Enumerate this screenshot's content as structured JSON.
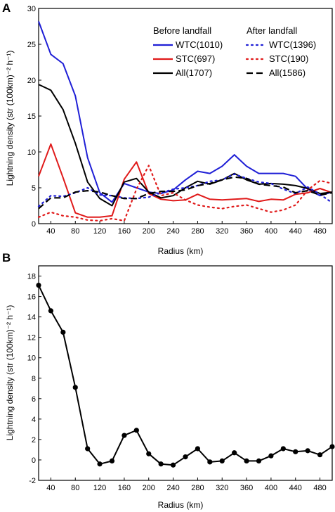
{
  "chart_data": [
    {
      "type": "line",
      "panel_label": "A",
      "xlabel": "Radius (km)",
      "ylabel": "Lightning density (str (100km)⁻² h⁻¹)",
      "xlim": [
        20,
        500
      ],
      "ylim": [
        0,
        30
      ],
      "xticks": [
        40,
        80,
        120,
        160,
        200,
        240,
        280,
        320,
        360,
        400,
        440,
        480
      ],
      "yticks": [
        0,
        5,
        10,
        15,
        20,
        25,
        30
      ],
      "legend": {
        "position": "top-right",
        "group_titles": [
          "Before landfall",
          "After landfall"
        ]
      },
      "x": [
        20,
        40,
        60,
        80,
        100,
        120,
        140,
        160,
        180,
        200,
        220,
        240,
        260,
        280,
        300,
        320,
        340,
        360,
        380,
        400,
        420,
        440,
        460,
        480,
        500
      ],
      "series": [
        {
          "name": "WTC(1010)",
          "group": "before",
          "color": "#1f1fd6",
          "dash": "solid",
          "values": [
            28.2,
            23.6,
            22.3,
            17.8,
            9.2,
            4.3,
            3.0,
            5.6,
            5.0,
            4.4,
            4.2,
            4.7,
            6.1,
            7.3,
            7.0,
            8.0,
            9.6,
            8.0,
            7.0,
            7.0,
            7.0,
            6.6,
            4.8,
            3.9,
            4.4
          ]
        },
        {
          "name": "STC(697)",
          "group": "before",
          "color": "#e01a1a",
          "dash": "solid",
          "values": [
            6.6,
            11.1,
            6.4,
            1.5,
            0.9,
            0.9,
            1.1,
            6.2,
            8.6,
            4.2,
            3.4,
            3.2,
            3.3,
            4.1,
            3.4,
            3.3,
            3.4,
            3.5,
            3.1,
            3.4,
            3.3,
            4.1,
            4.3,
            4.9,
            4.3
          ]
        },
        {
          "name": "All(1707)",
          "group": "before",
          "color": "#000000",
          "dash": "solid",
          "values": [
            19.4,
            18.6,
            15.9,
            11.2,
            5.8,
            3.5,
            2.5,
            5.8,
            6.3,
            4.4,
            3.6,
            3.9,
            5.0,
            5.9,
            5.5,
            6.1,
            7.0,
            6.1,
            5.5,
            5.6,
            5.5,
            5.3,
            4.9,
            4.2,
            4.4
          ]
        },
        {
          "name": "WTC(1396)",
          "group": "after",
          "color": "#1f1fd6",
          "dash": "dot",
          "values": [
            2.4,
            3.9,
            3.8,
            4.3,
            5.0,
            4.0,
            3.9,
            3.6,
            3.5,
            3.7,
            4.3,
            4.8,
            5.0,
            5.3,
            5.9,
            6.1,
            6.9,
            6.3,
            5.8,
            5.6,
            4.8,
            4.2,
            5.1,
            4.1,
            2.9
          ]
        },
        {
          "name": "STC(190)",
          "group": "after",
          "color": "#e01a1a",
          "dash": "dot",
          "values": [
            0.9,
            1.6,
            1.1,
            0.9,
            0.5,
            0.4,
            0.7,
            0.4,
            4.8,
            8.1,
            3.9,
            4.3,
            3.3,
            2.6,
            2.3,
            2.1,
            2.4,
            2.6,
            2.1,
            1.6,
            1.9,
            2.6,
            4.7,
            6.0,
            5.6
          ]
        },
        {
          "name": "All(1586)",
          "group": "after",
          "color": "#000000",
          "dash": "dash",
          "values": [
            2.1,
            3.6,
            3.6,
            4.4,
            4.6,
            4.4,
            3.9,
            3.5,
            3.5,
            4.2,
            4.5,
            4.5,
            4.7,
            5.3,
            5.6,
            6.1,
            6.5,
            6.3,
            5.5,
            5.3,
            5.1,
            4.3,
            4.6,
            4.0,
            4.3
          ]
        }
      ]
    },
    {
      "type": "line",
      "panel_label": "B",
      "xlabel": "Radius (km)",
      "ylabel": "Lightning density (str (100km)⁻² h⁻¹)",
      "xlim": [
        20,
        500
      ],
      "ylim": [
        -2,
        19
      ],
      "xticks": [
        40,
        80,
        120,
        160,
        200,
        240,
        280,
        320,
        360,
        400,
        440,
        480
      ],
      "yticks": [
        -2,
        0,
        2,
        4,
        6,
        8,
        10,
        12,
        14,
        16,
        18
      ],
      "markers": true,
      "x": [
        20,
        40,
        60,
        80,
        100,
        120,
        140,
        160,
        180,
        200,
        220,
        240,
        260,
        280,
        300,
        320,
        340,
        360,
        380,
        400,
        420,
        440,
        460,
        480,
        500
      ],
      "series": [
        {
          "color": "#000000",
          "values": [
            17.1,
            14.6,
            12.5,
            7.1,
            1.1,
            -0.4,
            -0.1,
            2.4,
            2.9,
            0.6,
            -0.4,
            -0.5,
            0.3,
            1.1,
            -0.2,
            -0.1,
            0.7,
            -0.1,
            -0.1,
            0.4,
            1.1,
            0.8,
            0.9,
            0.5,
            1.3
          ]
        }
      ]
    }
  ]
}
